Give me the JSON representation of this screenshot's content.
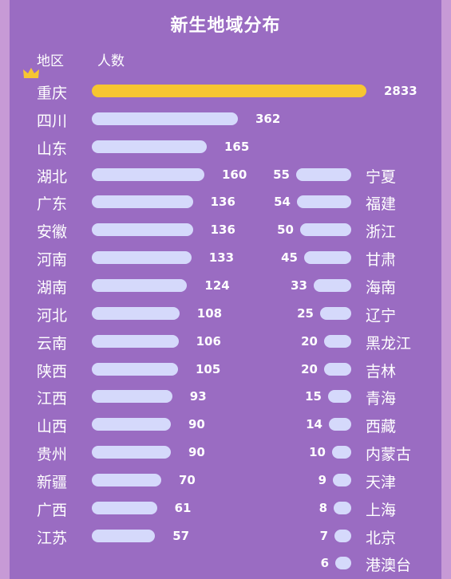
{
  "title": "新生地域分布",
  "header": {
    "region": "地区",
    "count": "人数"
  },
  "colors": {
    "background": "#9a6cc2",
    "top_bar": "#f7c531",
    "bar": "#d5d9fb",
    "text": "#ffffff"
  },
  "chart_data": [
    {
      "type": "bar",
      "orientation": "horizontal",
      "categories": [
        "重庆",
        "四川",
        "山东",
        "湖北",
        "广东",
        "安徽",
        "河南",
        "湖南",
        "河北",
        "云南",
        "陕西",
        "江西",
        "山西",
        "贵州",
        "新疆",
        "广西",
        "江苏"
      ],
      "values": [
        2833,
        362,
        165,
        160,
        136,
        136,
        133,
        124,
        108,
        106,
        105,
        93,
        90,
        90,
        70,
        61,
        57
      ]
    },
    {
      "type": "bar",
      "orientation": "horizontal",
      "categories": [
        "宁夏",
        "福建",
        "浙江",
        "甘肃",
        "海南",
        "辽宁",
        "黑龙江",
        "吉林",
        "青海",
        "西藏",
        "内蒙古",
        "天津",
        "上海",
        "北京",
        "港澳台"
      ],
      "values": [
        55,
        54,
        50,
        45,
        33,
        25,
        20,
        20,
        15,
        14,
        10,
        9,
        8,
        7,
        6
      ]
    }
  ]
}
